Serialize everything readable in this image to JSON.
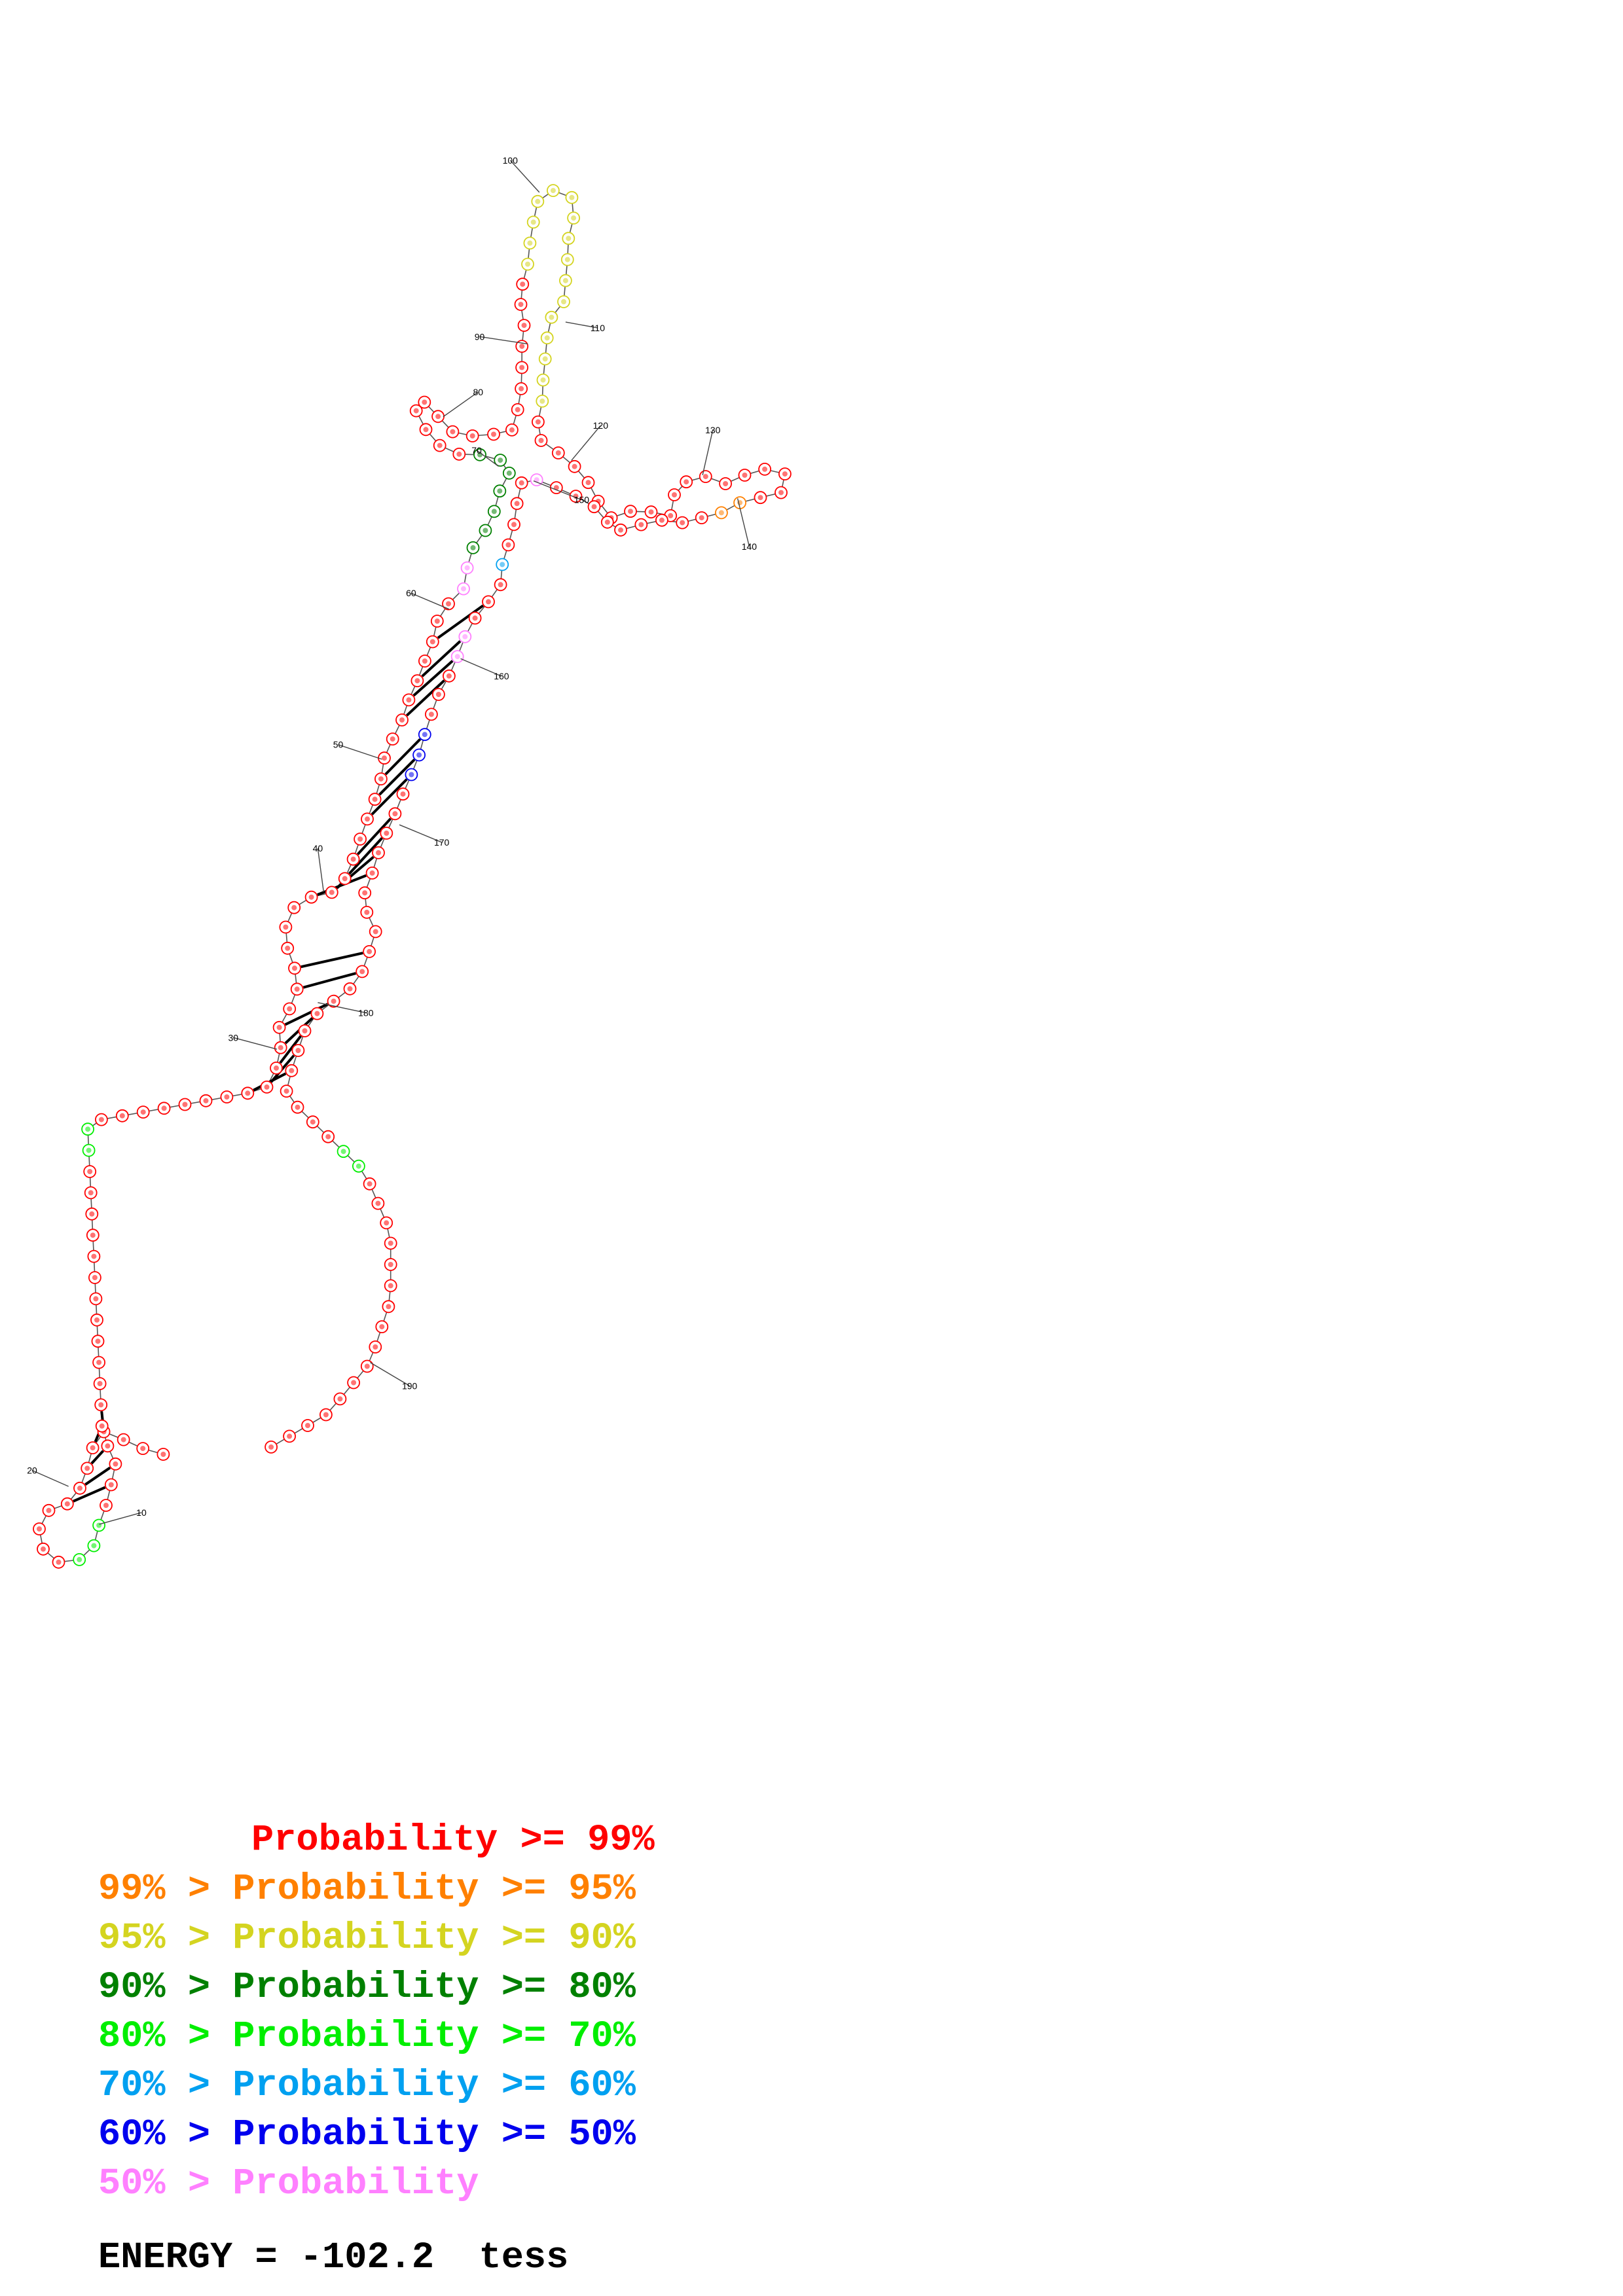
{
  "diagram": {
    "type": "rna-secondary-structure",
    "position_labels": [
      "10",
      "20",
      "30",
      "40",
      "50",
      "60",
      "70",
      "80",
      "90",
      "100",
      "110",
      "120",
      "130",
      "140",
      "150",
      "160",
      "170",
      "180",
      "190"
    ],
    "bond_color": "#000000",
    "backbone_color": "#555555"
  },
  "legend": {
    "rows": [
      {
        "prefix": "",
        "label": "Probability >= 99%",
        "color": "#ff0000"
      },
      {
        "prefix": "99% > ",
        "label": "Probability >= 95%",
        "color": "#ff8000"
      },
      {
        "prefix": "95% > ",
        "label": "Probability >= 90%",
        "color": "#d4d420"
      },
      {
        "prefix": "90% > ",
        "label": "Probability >= 80%",
        "color": "#008000"
      },
      {
        "prefix": "80% > ",
        "label": "Probability >= 70%",
        "color": "#00ee00"
      },
      {
        "prefix": "70% > ",
        "label": "Probability >= 60%",
        "color": "#00a0f0"
      },
      {
        "prefix": "60% > ",
        "label": "Probability >= 50%",
        "color": "#0000ee"
      },
      {
        "prefix": "50% > ",
        "label": "Probability",
        "color": "#ff80ff"
      }
    ]
  },
  "energy": {
    "text": "ENERGY = -102.2  tess"
  }
}
